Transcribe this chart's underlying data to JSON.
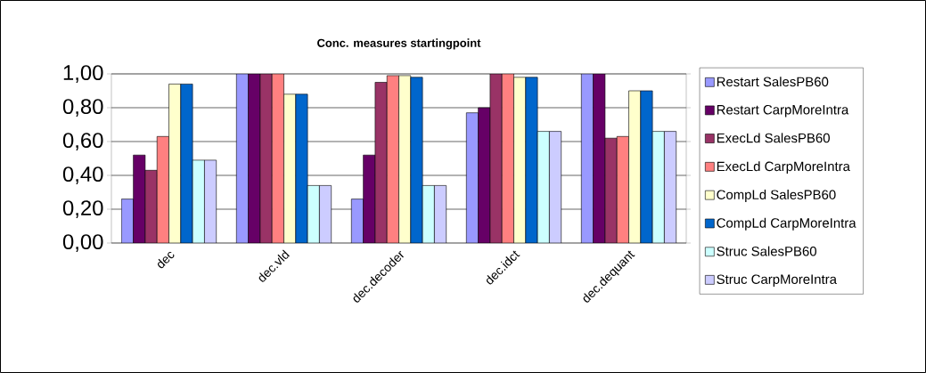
{
  "chart_data": {
    "type": "bar",
    "title": "Conc. measures startingpoint",
    "categories": [
      "dec",
      "dec.vld",
      "dec.decoder",
      "dec.idct",
      "dec.dequant"
    ],
    "series": [
      {
        "name": "Restart SalesPB60",
        "color": "#9999ff",
        "values": [
          0.26,
          1.0,
          0.26,
          0.77,
          1.0
        ]
      },
      {
        "name": "Restart CarpMoreIntra",
        "color": "#660066",
        "values": [
          0.52,
          1.0,
          0.52,
          0.8,
          1.0
        ]
      },
      {
        "name": "ExecLd SalesPB60",
        "color": "#993366",
        "values": [
          0.43,
          1.0,
          0.95,
          1.0,
          0.62
        ]
      },
      {
        "name": "ExecLd CarpMoreIntra",
        "color": "#ff8080",
        "values": [
          0.63,
          1.0,
          0.99,
          1.0,
          0.63
        ]
      },
      {
        "name": "CompLd SalesPB60",
        "color": "#ffffcc",
        "values": [
          0.94,
          0.88,
          0.99,
          0.98,
          0.9
        ]
      },
      {
        "name": "CompLd CarpMoreIntra",
        "color": "#0066cc",
        "values": [
          0.94,
          0.88,
          0.98,
          0.98,
          0.9
        ]
      },
      {
        "name": "Struc SalesPB60",
        "color": "#ccffff",
        "values": [
          0.49,
          0.34,
          0.34,
          0.66,
          0.66
        ]
      },
      {
        "name": "Struc CarpMoreIntra",
        "color": "#ccccff",
        "values": [
          0.49,
          0.34,
          0.34,
          0.66,
          0.66
        ]
      }
    ],
    "ylim": [
      0,
      1
    ],
    "yticks": [
      {
        "value": 0,
        "label": "0,00"
      },
      {
        "value": 0.2,
        "label": "0,20"
      },
      {
        "value": 0.4,
        "label": "0,40"
      },
      {
        "value": 0.6,
        "label": "0,60"
      },
      {
        "value": 0.8,
        "label": "0,80"
      },
      {
        "value": 1.0,
        "label": "1,00"
      }
    ],
    "grid": "y",
    "legend": "right"
  }
}
